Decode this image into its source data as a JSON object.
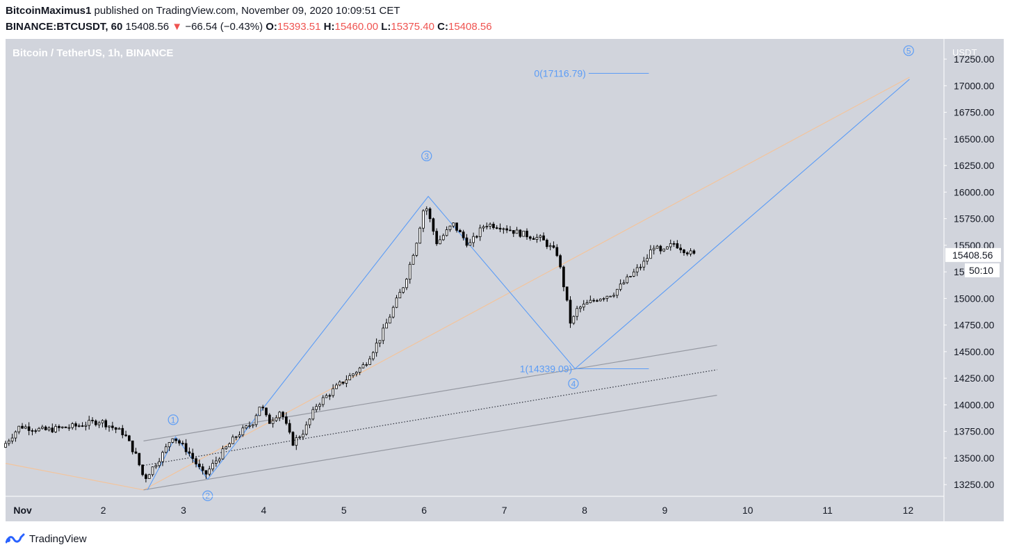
{
  "header": {
    "author": "BitcoinMaximus1",
    "published": "published on TradingView.com, November 09, 2020 10:09:51 CET",
    "symbol": "BINANCE:BTCUSDT, 60",
    "last": "15408.56",
    "change_arrow": "▼",
    "change": "−66.54 (−0.43%)",
    "o_label": "O:",
    "o": "15393.51",
    "h_label": "H:",
    "h": "15460.00",
    "l_label": "L:",
    "l": "15375.40",
    "c_label": "C:",
    "c": "15408.56"
  },
  "chart_data": {
    "type": "candlestick",
    "title": "Bitcoin / TetherUS, 1h, BINANCE",
    "currency": "USDT",
    "x_tick_labels": [
      "Nov",
      "2",
      "3",
      "4",
      "5",
      "6",
      "7",
      "8",
      "9",
      "10",
      "11",
      "12"
    ],
    "x_tick_days": [
      1,
      2,
      3,
      4,
      5,
      6,
      7,
      8,
      9,
      10,
      11,
      12
    ],
    "xlim_days": [
      0.78,
      12.48
    ],
    "y_tick_labels": [
      "13250.00",
      "13500.00",
      "13750.00",
      "14000.00",
      "14250.00",
      "14500.00",
      "14750.00",
      "15000.00",
      "15250.00",
      "15500.00",
      "15750.00",
      "16000.00",
      "16250.00",
      "16500.00",
      "16750.00",
      "17000.00",
      "17250.00"
    ],
    "ylim": [
      13140,
      17440
    ],
    "last_price_label": "15408.56",
    "countdown": "50:10",
    "colors": {
      "background": "#d1d4dc",
      "wave": "#5b9cf6",
      "orange": "#f3c49c",
      "gray": "#9598a1",
      "dotted": "#2a2e39",
      "candle": "#000000",
      "axis_text": "#131722",
      "watermark": "#ffffff"
    },
    "waypoints": [
      [
        0.78,
        13600
      ],
      [
        1.0,
        13800
      ],
      [
        1.3,
        13760
      ],
      [
        1.7,
        13800
      ],
      [
        2.0,
        13850
      ],
      [
        2.3,
        13730
      ],
      [
        2.45,
        13520
      ],
      [
        2.55,
        13300
      ],
      [
        2.8,
        13560
      ],
      [
        2.9,
        13710
      ],
      [
        3.1,
        13560
      ],
      [
        3.3,
        13330
      ],
      [
        3.5,
        13530
      ],
      [
        3.7,
        13710
      ],
      [
        3.9,
        13830
      ],
      [
        4.0,
        14010
      ],
      [
        4.1,
        13830
      ],
      [
        4.25,
        13950
      ],
      [
        4.4,
        13640
      ],
      [
        4.55,
        13760
      ],
      [
        4.7,
        14000
      ],
      [
        5.0,
        14200
      ],
      [
        5.3,
        14380
      ],
      [
        5.5,
        14640
      ],
      [
        5.65,
        14900
      ],
      [
        5.8,
        15150
      ],
      [
        5.95,
        15550
      ],
      [
        6.05,
        15900
      ],
      [
        6.2,
        15520
      ],
      [
        6.4,
        15700
      ],
      [
        6.6,
        15500
      ],
      [
        6.8,
        15700
      ],
      [
        7.0,
        15680
      ],
      [
        7.2,
        15620
      ],
      [
        7.5,
        15560
      ],
      [
        7.7,
        15420
      ],
      [
        7.8,
        15050
      ],
      [
        7.87,
        14750
      ],
      [
        7.95,
        14900
      ],
      [
        8.2,
        15000
      ],
      [
        8.4,
        15050
      ],
      [
        8.6,
        15200
      ],
      [
        8.8,
        15350
      ],
      [
        8.9,
        15500
      ],
      [
        9.0,
        15420
      ],
      [
        9.15,
        15520
      ],
      [
        9.3,
        15450
      ],
      [
        9.4,
        15408.56
      ]
    ],
    "wave_lines": [
      {
        "name": "wave-up-line",
        "points": [
          [
            2.55,
            13200
          ],
          [
            2.9,
            13700
          ],
          [
            3.3,
            13300
          ],
          [
            6.05,
            15960
          ],
          [
            7.88,
            14339.09
          ],
          [
            12.05,
            17060
          ]
        ]
      }
    ],
    "orange_line": {
      "points": [
        [
          0.78,
          13450
        ],
        [
          2.5,
          13200
        ],
        [
          12.05,
          17080
        ]
      ]
    },
    "channel_lines": [
      {
        "name": "channel-upper-line",
        "style": "solid",
        "points": [
          [
            2.5,
            13660
          ],
          [
            9.65,
            14560
          ]
        ]
      },
      {
        "name": "channel-middle-line",
        "style": "dotted",
        "points": [
          [
            2.5,
            13430
          ],
          [
            9.65,
            14330
          ]
        ]
      },
      {
        "name": "channel-lower-line",
        "style": "solid",
        "points": [
          [
            2.5,
            13200
          ],
          [
            9.65,
            14090
          ]
        ]
      }
    ],
    "fib_levels": [
      {
        "label": "0(17116.79)",
        "value": 17116.79,
        "x_from": 8.05,
        "x_to": 8.8
      },
      {
        "label": "1(14339.09)",
        "value": 14339.09,
        "x_from": 7.88,
        "x_to": 8.8
      }
    ],
    "wave_labels": [
      {
        "text": "1",
        "x": 2.87,
        "y": 13860
      },
      {
        "text": "2",
        "x": 3.3,
        "y": 13145
      },
      {
        "text": "3",
        "x": 6.03,
        "y": 16340
      },
      {
        "text": "4",
        "x": 7.86,
        "y": 14200
      },
      {
        "text": "5",
        "x": 12.04,
        "y": 17330
      }
    ]
  },
  "footer": {
    "brand": "TradingView",
    "logo_icon": "tradingview-logo-icon"
  }
}
